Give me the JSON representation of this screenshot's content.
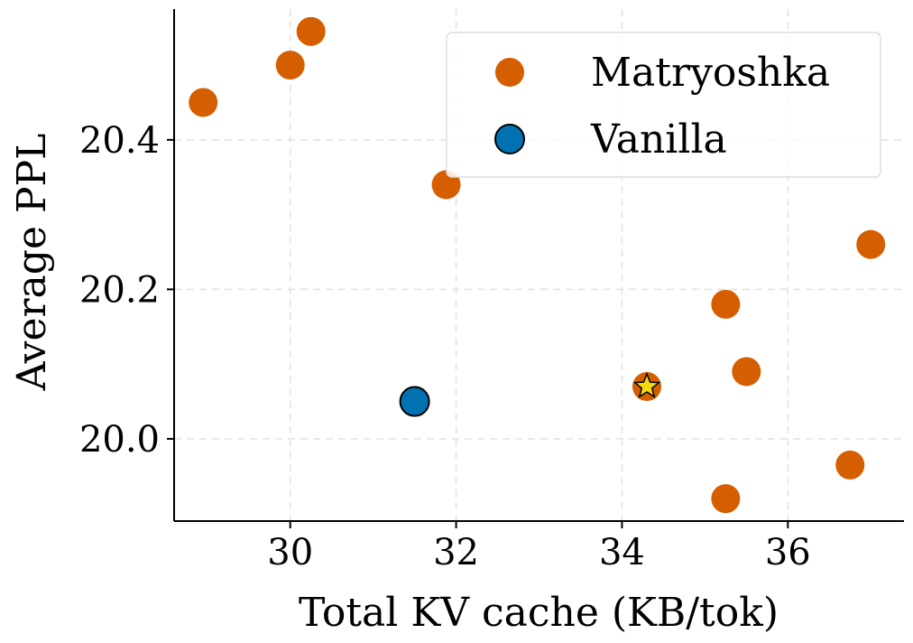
{
  "chart_data": {
    "type": "scatter",
    "xlabel": "Total KV cache (KB/tok)",
    "ylabel": "Average PPL",
    "xlim": [
      28.6,
      37.4
    ],
    "ylim": [
      19.89,
      20.575
    ],
    "xticks": [
      30,
      32,
      34,
      36
    ],
    "yticks": [
      20.0,
      20.2,
      20.4
    ],
    "xtick_labels": [
      "30",
      "32",
      "34",
      "36"
    ],
    "ytick_labels": [
      "20.0",
      "20.2",
      "20.4"
    ],
    "grid": true,
    "legend_position": "top-right",
    "series": [
      {
        "name": "Matryoshka",
        "color": "#D55E00",
        "marker": "circle",
        "points": [
          {
            "x": 28.95,
            "y": 20.45
          },
          {
            "x": 30.0,
            "y": 20.5
          },
          {
            "x": 30.25,
            "y": 20.545
          },
          {
            "x": 31.88,
            "y": 20.34
          },
          {
            "x": 35.25,
            "y": 20.18
          },
          {
            "x": 35.5,
            "y": 20.09
          },
          {
            "x": 37.0,
            "y": 20.26
          },
          {
            "x": 36.75,
            "y": 19.965
          },
          {
            "x": 35.25,
            "y": 19.92
          },
          {
            "x": 34.3,
            "y": 20.07,
            "highlight": "star"
          }
        ]
      },
      {
        "name": "Vanilla",
        "color": "#0072B2",
        "marker": "circle-outlined",
        "points": [
          {
            "x": 31.5,
            "y": 20.05
          }
        ]
      }
    ],
    "highlight_star_color": "#F5D90A"
  }
}
